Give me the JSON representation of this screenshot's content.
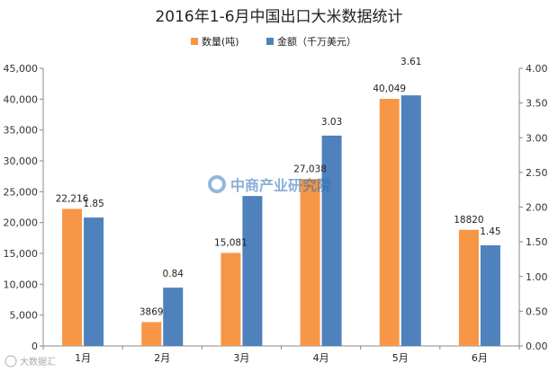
{
  "chart_data": {
    "type": "bar",
    "title": "2016年1-6月中国出口大米数据统计",
    "categories": [
      "1月",
      "2月",
      "3月",
      "4月",
      "5月",
      "6月"
    ],
    "series": [
      {
        "name": "数量(吨)",
        "axis": "left",
        "color": "#f79646",
        "values": [
          22216,
          3869,
          15081,
          27038,
          40049,
          18820
        ],
        "labels": [
          "22,216",
          "3869",
          "15,081",
          "27,038",
          "40,049",
          "18820"
        ]
      },
      {
        "name": "金额（千万美元）",
        "axis": "right",
        "color": "#4f81bd",
        "values": [
          1.85,
          0.84,
          2.16,
          3.03,
          3.61,
          1.45
        ],
        "labels": [
          "1.85",
          "0.84",
          "",
          "3.03",
          "3.61",
          "1.45"
        ]
      }
    ],
    "y_left": {
      "range": [
        0,
        45000
      ],
      "ticks": [
        "0",
        "5,000",
        "10,000",
        "15,000",
        "20,000",
        "25,000",
        "30,000",
        "35,000",
        "40,000",
        "45,000"
      ]
    },
    "y_right": {
      "range": [
        0,
        4.0
      ],
      "ticks": [
        "0.00",
        "0.50",
        "1.00",
        "1.50",
        "2.00",
        "2.50",
        "3.00",
        "3.50",
        "4.00"
      ]
    },
    "legend_position": "top-right",
    "grid": false
  },
  "watermark": {
    "text": "中商产业研究院",
    "corner_text": "大数据汇"
  }
}
